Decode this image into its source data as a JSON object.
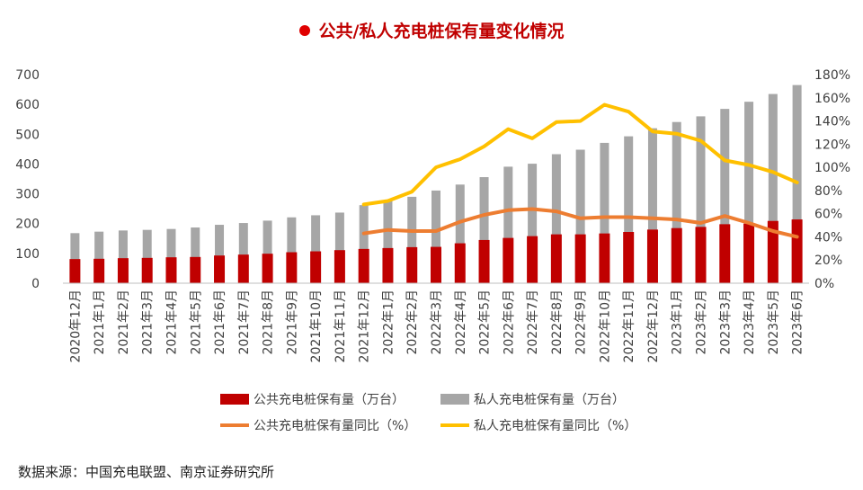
{
  "title": "公共/私人充电桩保有量变化情况",
  "source": "数据来源：中国充电联盟、南京证券研究所",
  "chart_data": {
    "type": "bar+line",
    "categories": [
      "2020年12月",
      "2021年1月",
      "2021年2月",
      "2021年3月",
      "2021年4月",
      "2021年5月",
      "2021年6月",
      "2021年7月",
      "2021年8月",
      "2021年9月",
      "2021年10月",
      "2021年11月",
      "2021年12月",
      "2022年1月",
      "2022年2月",
      "2022年3月",
      "2022年4月",
      "2022年5月",
      "2022年6月",
      "2022年7月",
      "2022年8月",
      "2022年9月",
      "2022年10月",
      "2022年11月",
      "2022年12月",
      "2023年1月",
      "2023年2月",
      "2023年3月",
      "2023年4月",
      "2023年5月",
      "2023年6月"
    ],
    "y_left": {
      "ticks": [
        0,
        100,
        200,
        300,
        400,
        500,
        600,
        700
      ],
      "range": [
        0,
        700
      ]
    },
    "y_right": {
      "ticks": [
        "0%",
        "20%",
        "40%",
        "60%",
        "80%",
        "100%",
        "120%",
        "140%",
        "160%",
        "180%"
      ],
      "range": [
        0,
        180
      ]
    },
    "bars": [
      {
        "name": "公共充电桩保有量（万台）",
        "color": "#c00000",
        "axis": "left",
        "values": [
          81,
          82,
          84,
          85,
          87,
          88,
          93,
          96,
          99,
          104,
          107,
          111,
          115,
          118,
          121,
          122,
          134,
          145,
          152,
          158,
          164,
          164,
          167,
          172,
          180,
          185,
          189,
          198,
          200,
          209,
          214
        ]
      },
      {
        "name": "私人充电桩保有量（万台）",
        "color": "#a6a6a6",
        "axis": "left",
        "values": [
          168,
          173,
          177,
          179,
          182,
          187,
          196,
          202,
          210,
          221,
          228,
          237,
          262,
          276,
          290,
          311,
          331,
          356,
          391,
          401,
          433,
          448,
          471,
          493,
          520,
          541,
          560,
          585,
          609,
          635,
          665
        ]
      }
    ],
    "lines": [
      {
        "name": "公共充电桩保有量同比（%）",
        "color": "#ed7d31",
        "axis": "right",
        "start_index": 12,
        "values": [
          43,
          46,
          45,
          45,
          53,
          59,
          63,
          64,
          62,
          56,
          57,
          57,
          56,
          55,
          52,
          58,
          52,
          45,
          40
        ]
      },
      {
        "name": "私人充电桩保有量同比（%）",
        "color": "#ffc000",
        "axis": "right",
        "start_index": 12,
        "values": [
          68,
          71,
          79,
          100,
          107,
          118,
          133,
          125,
          139,
          140,
          154,
          148,
          131,
          129,
          123,
          106,
          102,
          96,
          87
        ]
      }
    ],
    "legend_position": "bottom"
  }
}
